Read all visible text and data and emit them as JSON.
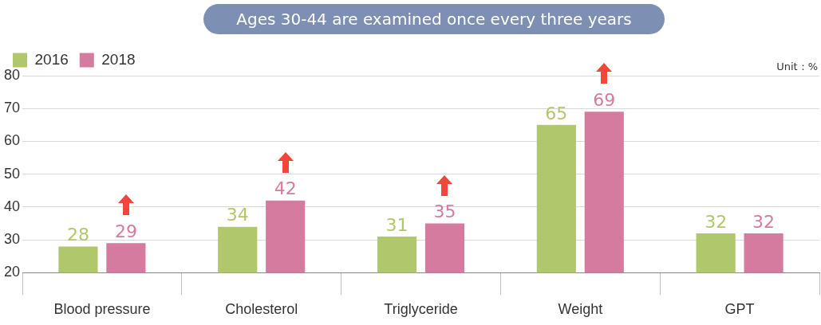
{
  "chart_data": {
    "type": "bar",
    "title": "Ages 30-44 are examined once every three years",
    "categories": [
      "Blood pressure",
      "Cholesterol",
      "Triglyceride",
      "Weight",
      "GPT"
    ],
    "series": [
      {
        "name": "2016",
        "color": "#b1c76b",
        "values": [
          28,
          34,
          31,
          65,
          32
        ]
      },
      {
        "name": "2018",
        "color": "#d57b9f",
        "values": [
          29,
          42,
          35,
          69,
          32
        ]
      }
    ],
    "ylim": [
      20,
      80
    ],
    "yticks": [
      20,
      30,
      40,
      50,
      60,
      70,
      80
    ],
    "grid": "y",
    "legend": "top left",
    "data_labels": true,
    "annotations": [
      "Unit：%"
    ]
  }
}
